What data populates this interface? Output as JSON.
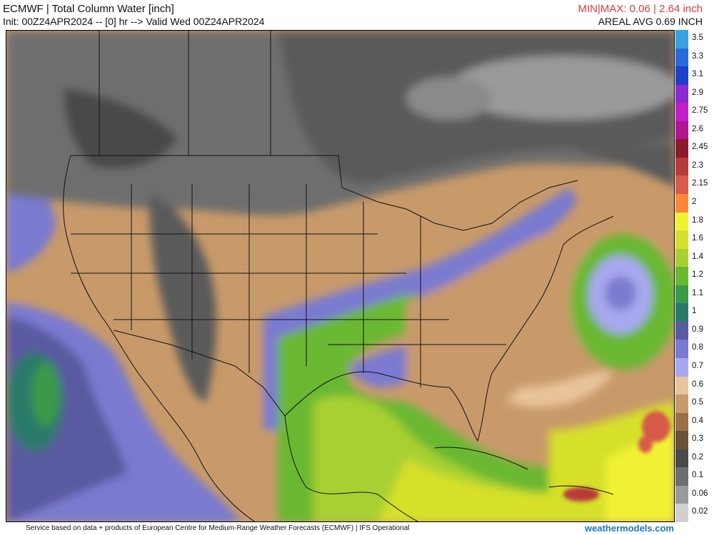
{
  "header": {
    "title": "ECMWF | Total Column Water [inch]",
    "subtitle": "Init: 00Z24APR2024 -- [0] hr --> Valid Wed 00Z24APR2024",
    "minmax": "MIN|MAX: 0.06 | 2.64 inch",
    "areal_avg": "AREAL AVG 0.69 INCH"
  },
  "legend": {
    "levels": [
      {
        "label": "3.5",
        "color": "#3aa0e0"
      },
      {
        "label": "3.3",
        "color": "#2a6ad8"
      },
      {
        "label": "3.1",
        "color": "#1e3fc8"
      },
      {
        "label": "2.9",
        "color": "#8a2ad0"
      },
      {
        "label": "2.75",
        "color": "#c21ec8"
      },
      {
        "label": "2.6",
        "color": "#b01690"
      },
      {
        "label": "2.45",
        "color": "#8c1a2a"
      },
      {
        "label": "2.3",
        "color": "#b83a3a"
      },
      {
        "label": "2.15",
        "color": "#d85a4a"
      },
      {
        "label": "2",
        "color": "#ff8838"
      },
      {
        "label": "1.8",
        "color": "#f2f234"
      },
      {
        "label": "1.6",
        "color": "#d6e02a"
      },
      {
        "label": "1.4",
        "color": "#a8d030"
      },
      {
        "label": "1.2",
        "color": "#6ab832"
      },
      {
        "label": "1.1",
        "color": "#3a9a4a"
      },
      {
        "label": "1",
        "color": "#2a7a6a"
      },
      {
        "label": "0.9",
        "color": "#5a5aa0"
      },
      {
        "label": "0.8",
        "color": "#7a7ad0"
      },
      {
        "label": "0.7",
        "color": "#a8a8f0"
      },
      {
        "label": "0.6",
        "color": "#e8c49a"
      },
      {
        "label": "0.5",
        "color": "#c89a6a"
      },
      {
        "label": "0.4",
        "color": "#9a7048"
      },
      {
        "label": "0.3",
        "color": "#6a5238"
      },
      {
        "label": "0.2",
        "color": "#4a4a4a"
      },
      {
        "label": "0.1",
        "color": "#6e6e6e"
      },
      {
        "label": "0.06",
        "color": "#9a9a9a"
      },
      {
        "label": "0.02",
        "color": "#d0d0d0"
      }
    ]
  },
  "footer": {
    "credit": "Service based on data + products of European Centre for Medium-Range Weather Forecasts (ECMWF) | IFS Operational",
    "brand": "weathermodels.com"
  }
}
